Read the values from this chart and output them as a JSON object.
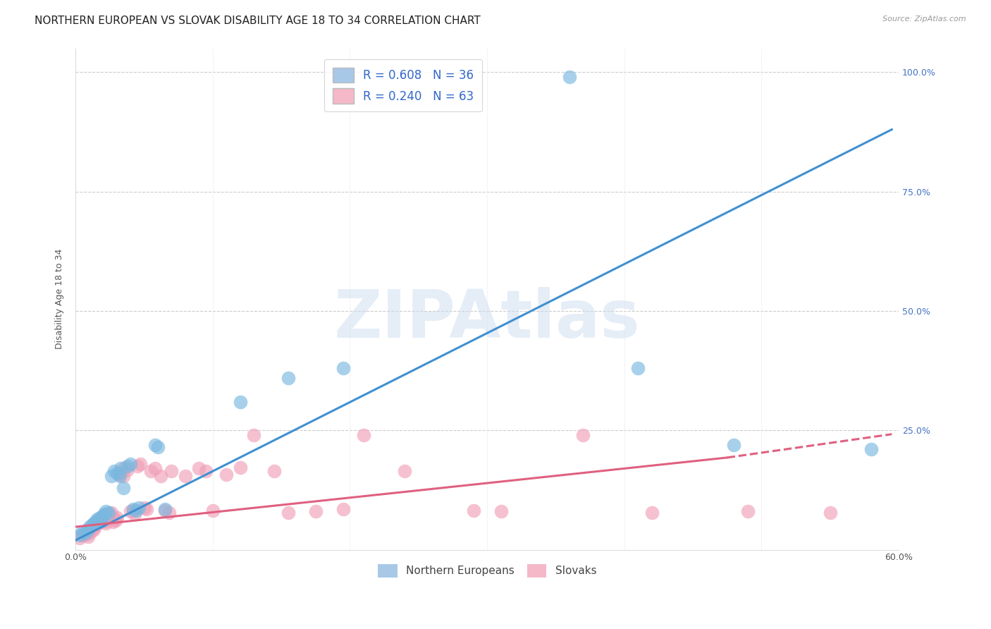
{
  "title": "NORTHERN EUROPEAN VS SLOVAK DISABILITY AGE 18 TO 34 CORRELATION CHART",
  "source": "Source: ZipAtlas.com",
  "ylabel": "Disability Age 18 to 34",
  "watermark": "ZIPAtlas",
  "xlim": [
    0.0,
    0.6
  ],
  "ylim": [
    0.0,
    1.05
  ],
  "legend_blue_label": "R = 0.608   N = 36",
  "legend_pink_label": "R = 0.240   N = 63",
  "legend_blue_color": "#a8c8e8",
  "legend_pink_color": "#f4b8c8",
  "blue_color": "#7ab8e0",
  "pink_color": "#f0a0b8",
  "line_blue_color": "#4090d0",
  "line_pink_color": "#e06080",
  "title_fontsize": 11,
  "axis_label_fontsize": 9,
  "tick_fontsize": 9,
  "blue_line_x0": 0.0,
  "blue_line_y0": 0.02,
  "blue_line_x1": 0.595,
  "blue_line_y1": 0.88,
  "pink_line_x0": 0.0,
  "pink_line_y0": 0.048,
  "pink_line_solid_x1": 0.475,
  "pink_line_solid_y1": 0.193,
  "pink_line_dash_x1": 0.595,
  "pink_line_dash_y1": 0.242,
  "blue_scatter": [
    [
      0.003,
      0.03
    ],
    [
      0.005,
      0.038
    ],
    [
      0.007,
      0.035
    ],
    [
      0.009,
      0.042
    ],
    [
      0.01,
      0.048
    ],
    [
      0.012,
      0.052
    ],
    [
      0.013,
      0.055
    ],
    [
      0.015,
      0.06
    ],
    [
      0.016,
      0.065
    ],
    [
      0.018,
      0.068
    ],
    [
      0.019,
      0.06
    ],
    [
      0.02,
      0.072
    ],
    [
      0.021,
      0.075
    ],
    [
      0.022,
      0.08
    ],
    [
      0.024,
      0.078
    ],
    [
      0.026,
      0.155
    ],
    [
      0.028,
      0.165
    ],
    [
      0.03,
      0.16
    ],
    [
      0.032,
      0.155
    ],
    [
      0.033,
      0.17
    ],
    [
      0.035,
      0.13
    ],
    [
      0.038,
      0.175
    ],
    [
      0.04,
      0.18
    ],
    [
      0.042,
      0.085
    ],
    [
      0.044,
      0.082
    ],
    [
      0.046,
      0.088
    ],
    [
      0.058,
      0.22
    ],
    [
      0.06,
      0.215
    ],
    [
      0.065,
      0.085
    ],
    [
      0.12,
      0.31
    ],
    [
      0.155,
      0.36
    ],
    [
      0.195,
      0.38
    ],
    [
      0.36,
      0.99
    ],
    [
      0.41,
      0.38
    ],
    [
      0.48,
      0.22
    ],
    [
      0.58,
      0.21
    ]
  ],
  "pink_scatter": [
    [
      0.003,
      0.025
    ],
    [
      0.005,
      0.03
    ],
    [
      0.006,
      0.035
    ],
    [
      0.008,
      0.032
    ],
    [
      0.009,
      0.028
    ],
    [
      0.01,
      0.04
    ],
    [
      0.011,
      0.038
    ],
    [
      0.012,
      0.045
    ],
    [
      0.013,
      0.042
    ],
    [
      0.014,
      0.048
    ],
    [
      0.015,
      0.052
    ],
    [
      0.016,
      0.058
    ],
    [
      0.017,
      0.055
    ],
    [
      0.018,
      0.062
    ],
    [
      0.019,
      0.068
    ],
    [
      0.02,
      0.065
    ],
    [
      0.021,
      0.06
    ],
    [
      0.022,
      0.055
    ],
    [
      0.023,
      0.07
    ],
    [
      0.024,
      0.075
    ],
    [
      0.025,
      0.072
    ],
    [
      0.026,
      0.078
    ],
    [
      0.027,
      0.058
    ],
    [
      0.028,
      0.065
    ],
    [
      0.029,
      0.062
    ],
    [
      0.03,
      0.068
    ],
    [
      0.032,
      0.158
    ],
    [
      0.033,
      0.162
    ],
    [
      0.035,
      0.155
    ],
    [
      0.036,
      0.172
    ],
    [
      0.038,
      0.168
    ],
    [
      0.04,
      0.08
    ],
    [
      0.042,
      0.082
    ],
    [
      0.043,
      0.075
    ],
    [
      0.045,
      0.175
    ],
    [
      0.047,
      0.18
    ],
    [
      0.05,
      0.088
    ],
    [
      0.052,
      0.085
    ],
    [
      0.055,
      0.165
    ],
    [
      0.058,
      0.17
    ],
    [
      0.062,
      0.155
    ],
    [
      0.065,
      0.082
    ],
    [
      0.068,
      0.078
    ],
    [
      0.07,
      0.165
    ],
    [
      0.08,
      0.155
    ],
    [
      0.09,
      0.17
    ],
    [
      0.095,
      0.165
    ],
    [
      0.1,
      0.082
    ],
    [
      0.11,
      0.158
    ],
    [
      0.12,
      0.172
    ],
    [
      0.13,
      0.24
    ],
    [
      0.145,
      0.165
    ],
    [
      0.155,
      0.078
    ],
    [
      0.175,
      0.08
    ],
    [
      0.195,
      0.085
    ],
    [
      0.21,
      0.24
    ],
    [
      0.24,
      0.165
    ],
    [
      0.29,
      0.082
    ],
    [
      0.31,
      0.08
    ],
    [
      0.37,
      0.24
    ],
    [
      0.42,
      0.078
    ],
    [
      0.49,
      0.08
    ],
    [
      0.55,
      0.078
    ]
  ]
}
